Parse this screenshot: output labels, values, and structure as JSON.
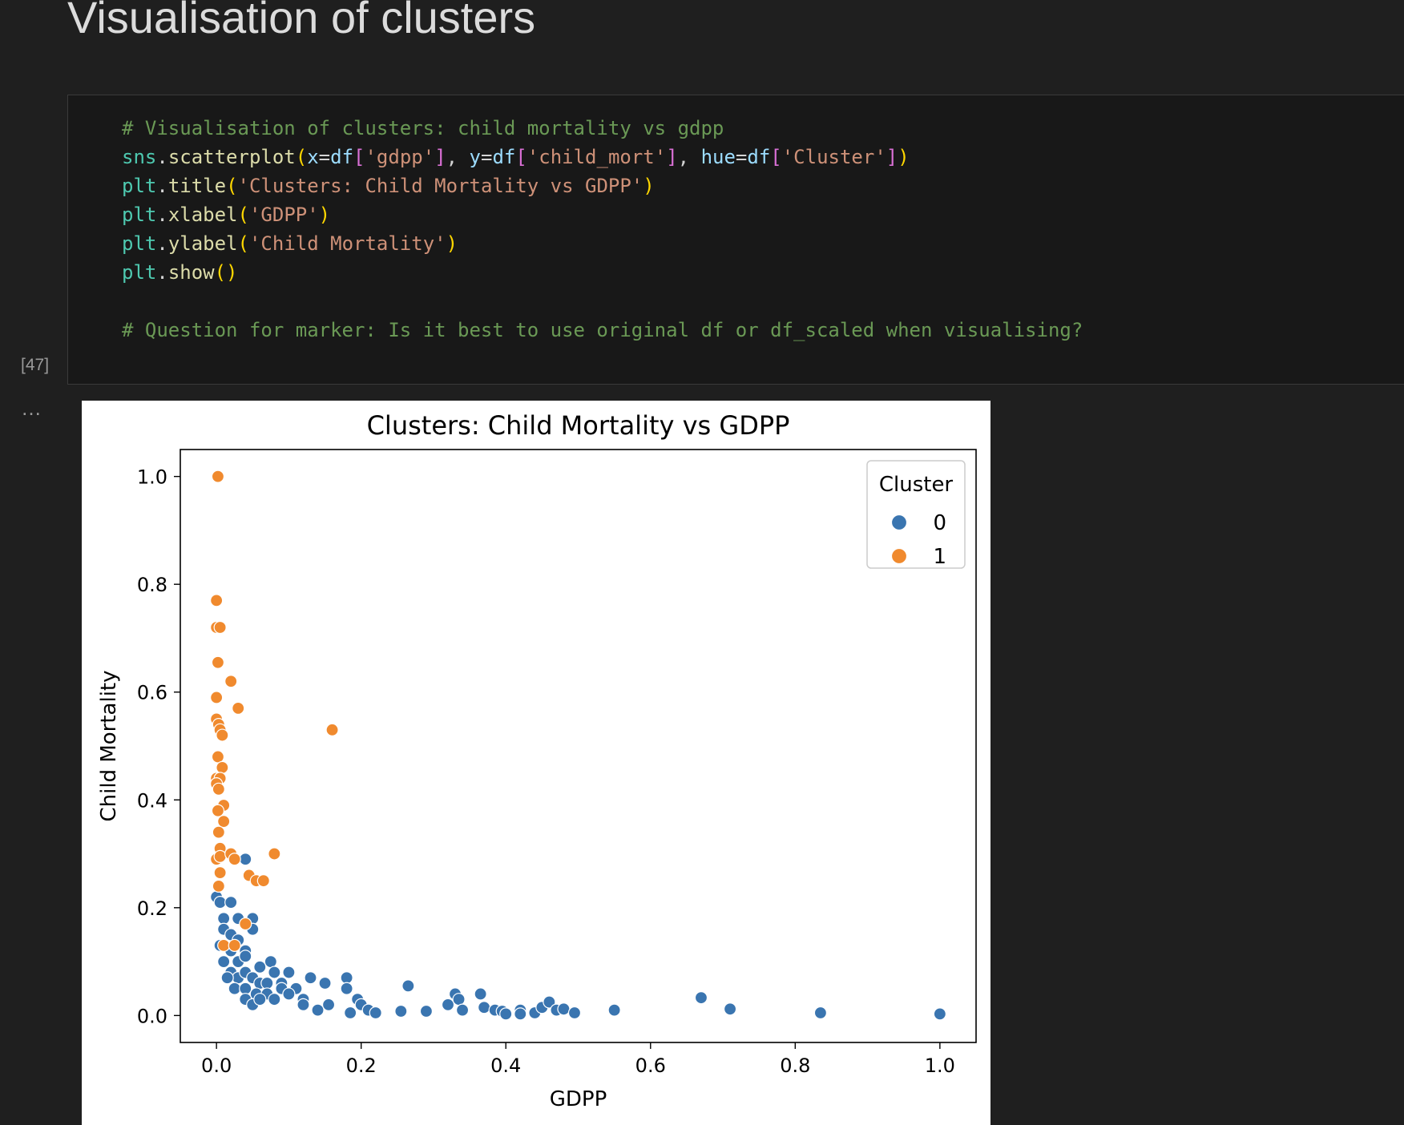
{
  "heading": "Visualisation of clusters",
  "cell": {
    "execution_count": "[47]",
    "more_label": "…"
  },
  "code_lines": [
    "# Visualisation of clusters: child mortality vs gdpp",
    "sns.scatterplot(x=df['gdpp'], y=df['child_mort'], hue=df['Cluster'])",
    "plt.title('Clusters: Child Mortality vs GDPP')",
    "plt.xlabel('GDPP')",
    "plt.ylabel('Child Mortality')",
    "plt.show()",
    "",
    "# Question for marker: Is it best to use original df or df_scaled when visualising?"
  ],
  "colors": {
    "cluster_0": "#3a75b0",
    "cluster_1": "#f08a2e",
    "comment": "#6a9955",
    "string": "#ce9178"
  },
  "chart_data": {
    "type": "scatter",
    "title": "Clusters: Child Mortality vs GDPP",
    "xlabel": "GDPP",
    "ylabel": "Child Mortality",
    "xlim": [
      -0.05,
      1.05
    ],
    "ylim": [
      -0.05,
      1.05
    ],
    "xticks": [
      "0.0",
      "0.2",
      "0.4",
      "0.6",
      "0.8",
      "1.0"
    ],
    "yticks": [
      "0.0",
      "0.2",
      "0.4",
      "0.6",
      "0.8",
      "1.0"
    ],
    "grid": false,
    "legend": {
      "title": "Cluster",
      "placement": "top-right",
      "entries": [
        "0",
        "1"
      ]
    },
    "series": [
      {
        "name": "0",
        "color": "#3a75b0",
        "points": [
          [
            0.0,
            0.22
          ],
          [
            0.005,
            0.21
          ],
          [
            0.02,
            0.21
          ],
          [
            0.01,
            0.18
          ],
          [
            0.03,
            0.18
          ],
          [
            0.05,
            0.18
          ],
          [
            0.04,
            0.29
          ],
          [
            0.01,
            0.16
          ],
          [
            0.02,
            0.15
          ],
          [
            0.03,
            0.14
          ],
          [
            0.05,
            0.16
          ],
          [
            0.005,
            0.13
          ],
          [
            0.02,
            0.12
          ],
          [
            0.04,
            0.12
          ],
          [
            0.01,
            0.1
          ],
          [
            0.03,
            0.1
          ],
          [
            0.04,
            0.11
          ],
          [
            0.06,
            0.09
          ],
          [
            0.075,
            0.1
          ],
          [
            0.08,
            0.08
          ],
          [
            0.1,
            0.08
          ],
          [
            0.02,
            0.08
          ],
          [
            0.03,
            0.07
          ],
          [
            0.04,
            0.08
          ],
          [
            0.05,
            0.07
          ],
          [
            0.06,
            0.06
          ],
          [
            0.07,
            0.06
          ],
          [
            0.09,
            0.06
          ],
          [
            0.015,
            0.07
          ],
          [
            0.025,
            0.05
          ],
          [
            0.04,
            0.05
          ],
          [
            0.055,
            0.04
          ],
          [
            0.07,
            0.04
          ],
          [
            0.09,
            0.05
          ],
          [
            0.11,
            0.05
          ],
          [
            0.04,
            0.03
          ],
          [
            0.05,
            0.02
          ],
          [
            0.06,
            0.03
          ],
          [
            0.08,
            0.03
          ],
          [
            0.1,
            0.04
          ],
          [
            0.12,
            0.03
          ],
          [
            0.12,
            0.02
          ],
          [
            0.13,
            0.07
          ],
          [
            0.14,
            0.01
          ],
          [
            0.15,
            0.06
          ],
          [
            0.155,
            0.02
          ],
          [
            0.18,
            0.07
          ],
          [
            0.18,
            0.05
          ],
          [
            0.195,
            0.03
          ],
          [
            0.2,
            0.02
          ],
          [
            0.185,
            0.005
          ],
          [
            0.21,
            0.01
          ],
          [
            0.22,
            0.005
          ],
          [
            0.255,
            0.008
          ],
          [
            0.265,
            0.055
          ],
          [
            0.29,
            0.008
          ],
          [
            0.32,
            0.02
          ],
          [
            0.33,
            0.04
          ],
          [
            0.335,
            0.03
          ],
          [
            0.34,
            0.01
          ],
          [
            0.365,
            0.04
          ],
          [
            0.37,
            0.015
          ],
          [
            0.385,
            0.01
          ],
          [
            0.395,
            0.008
          ],
          [
            0.4,
            0.003
          ],
          [
            0.42,
            0.01
          ],
          [
            0.42,
            0.003
          ],
          [
            0.44,
            0.005
          ],
          [
            0.45,
            0.015
          ],
          [
            0.46,
            0.025
          ],
          [
            0.47,
            0.01
          ],
          [
            0.48,
            0.012
          ],
          [
            0.495,
            0.005
          ],
          [
            0.55,
            0.01
          ],
          [
            0.67,
            0.033
          ],
          [
            0.71,
            0.012
          ],
          [
            0.835,
            0.005
          ],
          [
            1.0,
            0.003
          ]
        ]
      },
      {
        "name": "1",
        "color": "#f08a2e",
        "points": [
          [
            0.002,
            1.0
          ],
          [
            0.0,
            0.77
          ],
          [
            0.0,
            0.72
          ],
          [
            0.005,
            0.72
          ],
          [
            0.002,
            0.655
          ],
          [
            0.02,
            0.62
          ],
          [
            0.0,
            0.59
          ],
          [
            0.03,
            0.57
          ],
          [
            0.0,
            0.55
          ],
          [
            0.003,
            0.54
          ],
          [
            0.005,
            0.53
          ],
          [
            0.008,
            0.52
          ],
          [
            0.002,
            0.48
          ],
          [
            0.008,
            0.46
          ],
          [
            0.0,
            0.44
          ],
          [
            0.005,
            0.44
          ],
          [
            0.0,
            0.43
          ],
          [
            0.003,
            0.42
          ],
          [
            0.01,
            0.39
          ],
          [
            0.002,
            0.38
          ],
          [
            0.01,
            0.36
          ],
          [
            0.003,
            0.34
          ],
          [
            0.005,
            0.31
          ],
          [
            0.0,
            0.29
          ],
          [
            0.005,
            0.295
          ],
          [
            0.02,
            0.3
          ],
          [
            0.025,
            0.29
          ],
          [
            0.08,
            0.3
          ],
          [
            0.045,
            0.26
          ],
          [
            0.055,
            0.25
          ],
          [
            0.065,
            0.25
          ],
          [
            0.005,
            0.265
          ],
          [
            0.003,
            0.24
          ],
          [
            0.04,
            0.17
          ],
          [
            0.01,
            0.13
          ],
          [
            0.025,
            0.13
          ],
          [
            0.16,
            0.53
          ]
        ]
      }
    ]
  }
}
